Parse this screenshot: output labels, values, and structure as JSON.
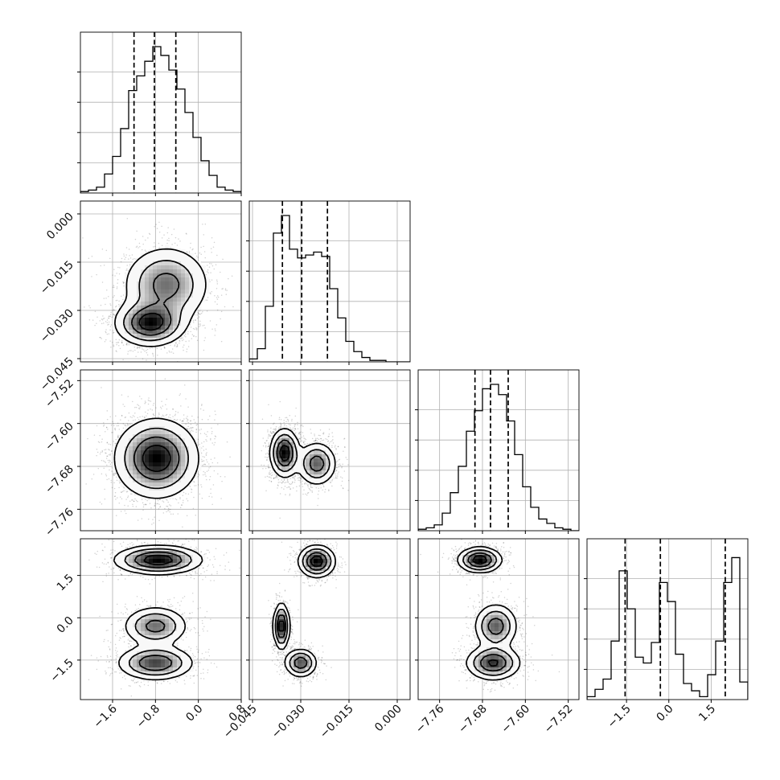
{
  "chart_data": {
    "type": "corner",
    "parameters": [
      {
        "range": [
          -2.2,
          0.8
        ],
        "ticks": [
          "-1.6",
          "-0.8",
          "0.0",
          "0.8"
        ],
        "tick_values": [
          -1.6,
          -0.8,
          0.0,
          0.8
        ],
        "quantiles": [
          -1.2,
          -0.82,
          -0.42
        ],
        "hist": [
          0.01,
          0.02,
          0.04,
          0.13,
          0.25,
          0.44,
          0.7,
          0.8,
          0.9,
          1.0,
          0.94,
          0.84,
          0.71,
          0.55,
          0.38,
          0.22,
          0.12,
          0.04,
          0.02,
          0.01
        ]
      },
      {
        "range": [
          -0.046,
          0.004
        ],
        "ticks": [
          "-0.045",
          "-0.030",
          "-0.015",
          "0.000"
        ],
        "tick_values": [
          -0.045,
          -0.03,
          -0.015,
          0.0
        ],
        "quantiles": [
          -0.0357,
          -0.0297,
          -0.0217
        ],
        "hist": [
          0.02,
          0.09,
          0.38,
          0.88,
          1.0,
          0.77,
          0.71,
          0.73,
          0.75,
          0.72,
          0.5,
          0.3,
          0.14,
          0.07,
          0.03,
          0.01,
          0.01,
          0,
          0,
          0
        ]
      },
      {
        "range": [
          -7.8,
          -7.5
        ],
        "ticks": [
          "-7.76",
          "-7.68",
          "-7.60",
          "-7.52"
        ],
        "tick_values": [
          -7.76,
          -7.68,
          -7.6,
          -7.52
        ],
        "quantiles": [
          -7.694,
          -7.665,
          -7.632
        ],
        "hist": [
          0.01,
          0.02,
          0.04,
          0.12,
          0.26,
          0.44,
          0.68,
          0.82,
          0.97,
          1.0,
          0.93,
          0.75,
          0.52,
          0.3,
          0.16,
          0.08,
          0.05,
          0.02,
          0.01,
          0.0
        ]
      },
      {
        "range": [
          -2.9,
          2.8
        ],
        "ticks": [
          "-1.5",
          "0.0",
          "1.5"
        ],
        "tick_values": [
          -1.5,
          0.0,
          1.5
        ],
        "quantiles": [
          -1.55,
          -0.3,
          2.0
        ],
        "hist": [
          0.02,
          0.07,
          0.14,
          0.4,
          0.88,
          0.62,
          0.29,
          0.25,
          0.39,
          0.8,
          0.67,
          0.31,
          0.11,
          0.06,
          0.02,
          0.17,
          0.4,
          0.8,
          0.97,
          0.12
        ]
      }
    ],
    "pairs": [
      {
        "row": 1,
        "col": 0,
        "peaks": [
          {
            "x": -0.6,
            "y": -0.022,
            "sx": 0.4,
            "sy": 0.006,
            "w": 0.7
          },
          {
            "x": -0.9,
            "y": -0.034,
            "sx": 0.32,
            "sy": 0.0035,
            "w": 1.0
          }
        ]
      },
      {
        "row": 2,
        "col": 0,
        "peaks": [
          {
            "x": -0.78,
            "y": -7.665,
            "sx": 0.38,
            "sy": 0.036,
            "w": 1.0
          }
        ]
      },
      {
        "row": 2,
        "col": 1,
        "peaks": [
          {
            "x": -0.035,
            "y": -7.655,
            "sx": 0.0022,
            "sy": 0.022,
            "w": 1.0
          },
          {
            "x": -0.025,
            "y": -7.675,
            "sx": 0.003,
            "sy": 0.02,
            "w": 0.7
          }
        ]
      },
      {
        "row": 3,
        "col": 0,
        "peaks": [
          {
            "x": -0.75,
            "y": 2.05,
            "sx": 0.4,
            "sy": 0.25,
            "w": 1.0
          },
          {
            "x": -0.8,
            "y": -0.3,
            "sx": 0.3,
            "sy": 0.35,
            "w": 0.65
          },
          {
            "x": -0.8,
            "y": -1.6,
            "sx": 0.35,
            "sy": 0.3,
            "w": 0.8
          }
        ]
      },
      {
        "row": 3,
        "col": 1,
        "peaks": [
          {
            "x": -0.025,
            "y": 2.0,
            "sx": 0.0028,
            "sy": 0.28,
            "w": 1.0
          },
          {
            "x": -0.036,
            "y": -0.3,
            "sx": 0.0012,
            "sy": 0.4,
            "w": 1.0
          },
          {
            "x": -0.03,
            "y": -1.6,
            "sx": 0.0025,
            "sy": 0.25,
            "w": 0.75
          }
        ]
      },
      {
        "row": 3,
        "col": 2,
        "peaks": [
          {
            "x": -7.685,
            "y": 2.05,
            "sx": 0.02,
            "sy": 0.22,
            "w": 1.0
          },
          {
            "x": -7.655,
            "y": -0.3,
            "sx": 0.02,
            "sy": 0.4,
            "w": 0.7
          },
          {
            "x": -7.66,
            "y": -1.6,
            "sx": 0.025,
            "sy": 0.3,
            "w": 0.85
          }
        ]
      }
    ]
  }
}
